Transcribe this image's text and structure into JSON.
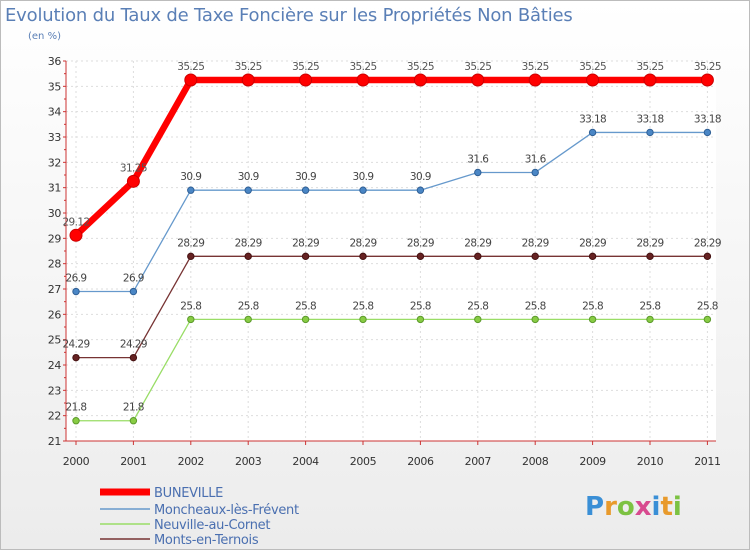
{
  "chart_data": {
    "type": "line",
    "title": "Evolution du Taux de Taxe Foncière sur les Propriétés Non Bâties",
    "subtitle": "(en %)",
    "xlabel": "",
    "ylabel": "",
    "x": [
      "2000",
      "2001",
      "2002",
      "2003",
      "2004",
      "2005",
      "2006",
      "2007",
      "2008",
      "2009",
      "2010",
      "2011"
    ],
    "ylim": [
      21,
      36
    ],
    "yticks": [
      21,
      22,
      23,
      24,
      25,
      26,
      27,
      28,
      29,
      30,
      31,
      32,
      33,
      34,
      35,
      36
    ],
    "grid": true,
    "series": [
      {
        "name": "BUNEVILLE",
        "color": "#ff0000",
        "values": [
          29.12,
          31.25,
          35.25,
          35.25,
          35.25,
          35.25,
          35.25,
          35.25,
          35.25,
          35.25,
          35.25,
          35.25
        ],
        "labels": [
          "29.12",
          "31.25",
          "35.25",
          "35.25",
          "35.25",
          "35.25",
          "35.25",
          "35.25",
          "35.25",
          "35.25",
          "35.25",
          "35.25"
        ]
      },
      {
        "name": "Moncheaux-lès-Frévent",
        "color": "#6699cc",
        "values": [
          26.9,
          26.9,
          30.9,
          30.9,
          30.9,
          30.9,
          30.9,
          31.6,
          31.6,
          33.18,
          33.18,
          33.18
        ],
        "labels": [
          "26.9",
          "26.9",
          "30.9",
          "30.9",
          "30.9",
          "30.9",
          "30.9",
          "31.6",
          "31.6",
          "33.18",
          "33.18",
          "33.18"
        ]
      },
      {
        "name": "Neuville-au-Cornet",
        "color": "#99dd66",
        "values": [
          21.8,
          21.8,
          25.8,
          25.8,
          25.8,
          25.8,
          25.8,
          25.8,
          25.8,
          25.8,
          25.8,
          25.8
        ],
        "labels": [
          "21.8",
          "21.8",
          "25.8",
          "25.8",
          "25.8",
          "25.8",
          "25.8",
          "25.8",
          "25.8",
          "25.8",
          "25.8",
          "25.8"
        ]
      },
      {
        "name": "Monts-en-Ternois",
        "color": "#773333",
        "values": [
          24.29,
          24.29,
          28.29,
          28.29,
          28.29,
          28.29,
          28.29,
          28.29,
          28.29,
          28.29,
          28.29,
          28.29
        ],
        "labels": [
          "24.29",
          "24.29",
          "28.29",
          "28.29",
          "28.29",
          "28.29",
          "28.29",
          "28.29",
          "28.29",
          "28.29",
          "28.29",
          "28.29"
        ]
      }
    ],
    "legend_position": "bottom-left"
  },
  "brand": {
    "logo_text": "Proxiti",
    "letters": [
      "P",
      "r",
      "o",
      "x",
      "i",
      "t",
      "i"
    ],
    "letter_colors": [
      "#3a8fd6",
      "#e89a2c",
      "#7cc242",
      "#d84a8f",
      "#3a8fd6",
      "#e89a2c",
      "#7cc242"
    ]
  }
}
